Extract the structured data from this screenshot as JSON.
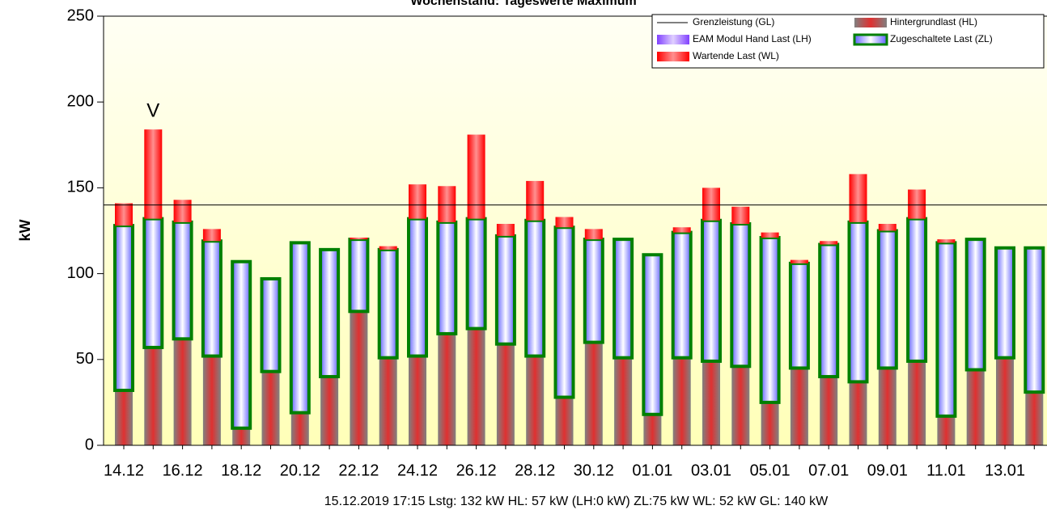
{
  "chart_data": {
    "type": "stacked_bar",
    "title": "Wochenstand: Tageswerte Maximum",
    "y_label": "kW",
    "footer": "15.12.2019 17:15 Lstg: 132 kW  HL: 57 kW (LH:0 kW)  ZL:75 kW  WL: 52 kW  GL: 140 kW",
    "annotation": {
      "text": "V",
      "index": 1
    },
    "categories": [
      "14.12",
      null,
      "16.12",
      null,
      "18.12",
      null,
      "20.12",
      null,
      "22.12",
      null,
      "24.12",
      null,
      "26.12",
      null,
      "28.12",
      null,
      "30.12",
      null,
      "01.01",
      null,
      "03.01",
      null,
      "05.01",
      null,
      "07.01",
      null,
      "09.01",
      null,
      "11.01",
      null,
      "13.01",
      null
    ],
    "ylim": [
      0,
      250
    ],
    "yticks": [
      0,
      50,
      100,
      150,
      200,
      250
    ],
    "limit_line": {
      "name": "Grenzleistung (GL)",
      "value": 140,
      "color": "#000000"
    },
    "series": [
      {
        "name": "Hintergrundlast (HL)",
        "color": "#808080",
        "stripe": "#e03030",
        "values": [
          32,
          57,
          62,
          52,
          10,
          43,
          19,
          40,
          78,
          51,
          52,
          65,
          68,
          59,
          52,
          28,
          60,
          51,
          18,
          51,
          49,
          46,
          25,
          45,
          40,
          37,
          45,
          49,
          17,
          44,
          51,
          31
        ]
      },
      {
        "name": "EAM Modul Hand Last (LH)",
        "color": "#8040ff",
        "stripe": "#e0d0ff",
        "values": [
          0,
          0,
          0,
          0,
          0,
          0,
          0,
          0,
          0,
          0,
          0,
          0,
          0,
          0,
          0,
          0,
          0,
          0,
          0,
          0,
          0,
          0,
          0,
          0,
          0,
          0,
          0,
          0,
          0,
          0,
          0,
          0
        ]
      },
      {
        "name": "Zugeschaltete Last (ZL)",
        "color": "#008000",
        "stripe": "#6060ff",
        "values": [
          96,
          75,
          68,
          67,
          97,
          54,
          99,
          74,
          42,
          63,
          80,
          65,
          64,
          63,
          79,
          99,
          60,
          69,
          93,
          73,
          82,
          83,
          96,
          61,
          77,
          93,
          80,
          83,
          101,
          76,
          64,
          84
        ]
      },
      {
        "name": "Wartende Last (WL)",
        "color": "#ff0000",
        "stripe": "#ff9090",
        "values": [
          13,
          52,
          13,
          7,
          0,
          0,
          0,
          0,
          1,
          2,
          20,
          21,
          49,
          7,
          23,
          6,
          6,
          0,
          0,
          3,
          19,
          10,
          3,
          2,
          2,
          28,
          4,
          17,
          2,
          0,
          0,
          0
        ]
      }
    ],
    "legend": "top-right"
  }
}
